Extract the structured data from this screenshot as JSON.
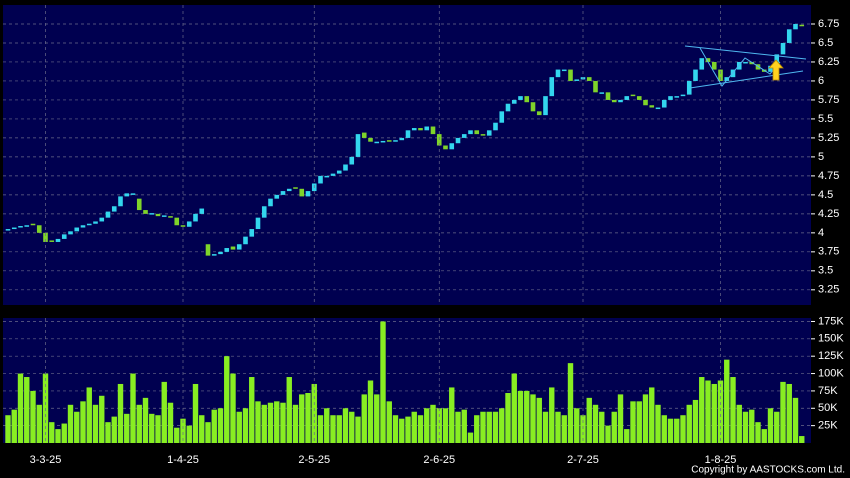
{
  "chart_data": [
    {
      "type": "candlestick",
      "up_color": "#33d6ee",
      "down_color": "#7fd42a",
      "ylim": [
        3.05,
        7.0
      ],
      "yticks": [
        3.25,
        3.5,
        3.75,
        4,
        4.25,
        4.5,
        4.75,
        5,
        5.25,
        5.5,
        5.75,
        6,
        6.25,
        6.5,
        6.75
      ],
      "grid": true,
      "open": [
        4.03,
        4.05,
        4.07,
        4.08,
        4.12,
        4.1,
        4.0,
        3.9,
        3.88,
        3.92,
        3.98,
        4.02,
        4.07,
        4.1,
        4.12,
        4.15,
        4.2,
        4.28,
        4.35,
        4.48,
        4.5,
        4.45,
        4.3,
        4.25,
        4.25,
        4.22,
        4.22,
        4.2,
        4.1,
        4.08,
        4.15,
        4.25,
        3.85,
        3.7,
        3.72,
        3.75,
        3.82,
        3.78,
        3.85,
        3.95,
        4.05,
        4.2,
        4.35,
        4.45,
        4.5,
        4.55,
        4.6,
        4.58,
        4.48,
        4.55,
        4.65,
        4.73,
        4.75,
        4.78,
        4.82,
        4.9,
        5.0,
        5.32,
        5.25,
        5.18,
        5.2,
        5.22,
        5.2,
        5.22,
        5.25,
        5.35,
        5.38,
        5.35,
        5.4,
        5.3,
        5.15,
        5.1,
        5.18,
        5.25,
        5.3,
        5.35,
        5.3,
        5.28,
        5.35,
        5.45,
        5.6,
        5.7,
        5.75,
        5.8,
        5.72,
        5.6,
        5.55,
        5.8,
        6.05,
        6.13,
        6.15,
        6.0,
        6.02,
        6.05,
        6.0,
        5.83,
        5.85,
        5.75,
        5.72,
        5.75,
        5.82,
        5.8,
        5.75,
        5.68,
        5.63,
        5.65,
        5.75,
        5.78,
        5.8,
        5.82,
        6.0,
        6.15,
        6.3,
        6.25,
        6.15,
        6.0,
        6.05,
        6.15,
        6.23,
        6.25,
        6.22,
        6.15,
        6.12,
        6.2,
        6.35,
        6.5,
        6.68,
        6.74
      ],
      "close": [
        4.05,
        4.07,
        4.08,
        4.1,
        4.1,
        4.0,
        3.88,
        3.88,
        3.92,
        3.98,
        4.02,
        4.07,
        4.1,
        4.12,
        4.15,
        4.2,
        4.28,
        4.35,
        4.48,
        4.52,
        4.52,
        4.3,
        4.25,
        4.25,
        4.22,
        4.22,
        4.2,
        4.1,
        4.08,
        4.15,
        4.25,
        4.32,
        3.7,
        3.72,
        3.75,
        3.8,
        3.78,
        3.85,
        3.95,
        4.05,
        4.2,
        4.35,
        4.45,
        4.5,
        4.55,
        4.58,
        4.58,
        4.48,
        4.55,
        4.65,
        4.75,
        4.75,
        4.78,
        4.82,
        4.9,
        5.0,
        5.3,
        5.25,
        5.2,
        5.2,
        5.2,
        5.2,
        5.22,
        5.25,
        5.35,
        5.38,
        5.35,
        5.4,
        5.3,
        5.15,
        5.1,
        5.18,
        5.25,
        5.3,
        5.35,
        5.3,
        5.28,
        5.35,
        5.45,
        5.6,
        5.7,
        5.75,
        5.8,
        5.72,
        5.6,
        5.55,
        5.8,
        6.05,
        6.15,
        6.15,
        6.0,
        6.02,
        6.05,
        6.0,
        5.85,
        5.85,
        5.75,
        5.72,
        5.75,
        5.8,
        5.8,
        5.75,
        5.68,
        5.65,
        5.65,
        5.75,
        5.8,
        5.8,
        5.82,
        6.0,
        6.15,
        6.3,
        6.25,
        6.15,
        6.0,
        6.05,
        6.15,
        6.25,
        6.25,
        6.22,
        6.15,
        6.12,
        6.2,
        6.35,
        6.5,
        6.68,
        6.75,
        6.72
      ]
    },
    {
      "type": "bar",
      "color": "#88ee22",
      "ylim": [
        0,
        180000
      ],
      "yticks": [
        {
          "value": 25000,
          "label": "25K"
        },
        {
          "value": 50000,
          "label": "50K"
        },
        {
          "value": 75000,
          "label": "75K"
        },
        {
          "value": 100000,
          "label": "100K"
        },
        {
          "value": 125000,
          "label": "125K"
        },
        {
          "value": 150000,
          "label": "150K"
        },
        {
          "value": 175000,
          "label": "175K"
        }
      ],
      "grid": true,
      "categories": [
        null,
        null,
        null,
        null,
        null,
        null,
        "3-3-25",
        null,
        null,
        null,
        null,
        null,
        null,
        null,
        null,
        null,
        null,
        null,
        null,
        null,
        null,
        null,
        null,
        null,
        null,
        null,
        null,
        null,
        "1-4-25",
        null,
        null,
        null,
        null,
        null,
        null,
        null,
        null,
        null,
        null,
        null,
        null,
        null,
        null,
        null,
        null,
        null,
        null,
        null,
        null,
        "2-5-25",
        null,
        null,
        null,
        null,
        null,
        null,
        null,
        null,
        null,
        null,
        null,
        null,
        null,
        null,
        null,
        null,
        null,
        null,
        null,
        "2-6-25",
        null,
        null,
        null,
        null,
        null,
        null,
        null,
        null,
        null,
        null,
        null,
        null,
        null,
        null,
        null,
        null,
        null,
        null,
        null,
        null,
        null,
        null,
        "2-7-25",
        null,
        null,
        null,
        null,
        null,
        null,
        null,
        null,
        null,
        null,
        null,
        null,
        null,
        null,
        null,
        null,
        null,
        null,
        null,
        null,
        null,
        "1-8-25",
        null,
        null,
        null,
        null,
        null,
        null,
        null,
        null,
        null,
        null,
        null,
        null,
        null
      ],
      "values": [
        40000,
        48000,
        100000,
        95000,
        75000,
        55000,
        100000,
        30000,
        20000,
        28000,
        55000,
        45000,
        60000,
        80000,
        55000,
        68000,
        30000,
        38000,
        85000,
        42000,
        100000,
        55000,
        65000,
        42000,
        40000,
        88000,
        58000,
        22000,
        35000,
        25000,
        85000,
        40000,
        30000,
        48000,
        50000,
        125000,
        100000,
        45000,
        50000,
        95000,
        60000,
        55000,
        58000,
        60000,
        58000,
        95000,
        55000,
        70000,
        72000,
        85000,
        40000,
        50000,
        40000,
        40000,
        50000,
        45000,
        38000,
        70000,
        90000,
        70000,
        175000,
        60000,
        40000,
        35000,
        38000,
        45000,
        40000,
        50000,
        55000,
        50000,
        50000,
        80000,
        45000,
        48000,
        15000,
        40000,
        45000,
        45000,
        45000,
        50000,
        72000,
        100000,
        75000,
        75000,
        70000,
        65000,
        45000,
        80000,
        45000,
        40000,
        115000,
        50000,
        40000,
        65000,
        55000,
        45000,
        25000,
        45000,
        70000,
        20000,
        60000,
        60000,
        70000,
        80000,
        55000,
        40000,
        35000,
        35000,
        40000,
        55000,
        62000,
        95000,
        90000,
        85000,
        90000,
        120000,
        95000,
        55000,
        45000,
        48000,
        30000,
        20000,
        50000,
        45000,
        88000,
        85000,
        65000,
        10000
      ]
    }
  ],
  "copyright": "Copyright by AASTOCKS.com Ltd."
}
